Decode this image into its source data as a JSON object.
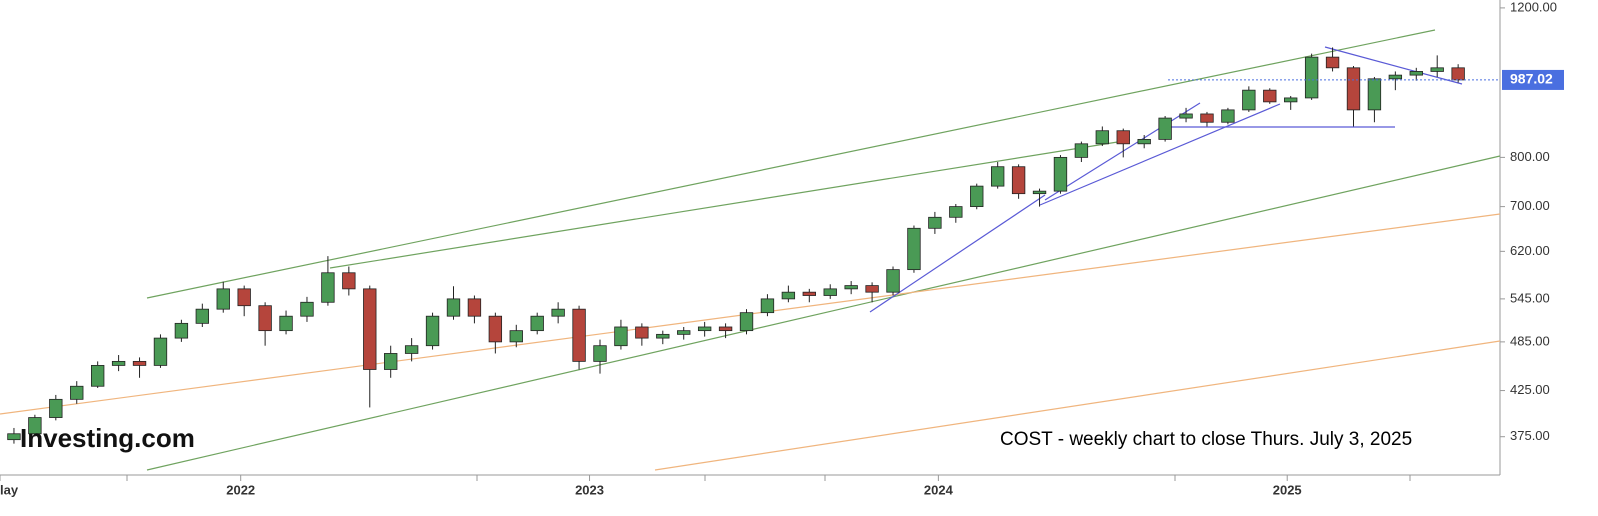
{
  "chart_data": {
    "type": "candlestick",
    "annotation": "COST - weekly chart to close Thurs. July 3, 2025",
    "watermark": "Investing.com",
    "log_scale": true,
    "up_color": "#4a9a55",
    "down_color": "#b5453c",
    "price_line_color": "#4a6fe0",
    "xlim": [
      2021.31,
      2025.61
    ],
    "xticks": [
      {
        "value": 2021.31,
        "label": "lay"
      },
      {
        "value": 2022,
        "label": "2022"
      },
      {
        "value": 2023,
        "label": "2023"
      },
      {
        "value": 2024,
        "label": "2024"
      },
      {
        "value": 2025,
        "label": "2025"
      }
    ],
    "ylim": [
      338,
      1226
    ],
    "yticks": [
      {
        "value": 375,
        "label": "375.00"
      },
      {
        "value": 425,
        "label": "425.00"
      },
      {
        "value": 485,
        "label": "485.00"
      },
      {
        "value": 545,
        "label": "545.00"
      },
      {
        "value": 620,
        "label": "620.00"
      },
      {
        "value": 700,
        "label": "700.00"
      },
      {
        "value": 800,
        "label": "800.00"
      },
      {
        "value": 1200,
        "label": "1200.00"
      }
    ],
    "x": [
      2021.35,
      2021.41,
      2021.47,
      2021.53,
      2021.59,
      2021.65,
      2021.71,
      2021.77,
      2021.83,
      2021.89,
      2021.95,
      2022.01,
      2022.07,
      2022.13,
      2022.19,
      2022.25,
      2022.31,
      2022.37,
      2022.43,
      2022.49,
      2022.55,
      2022.61,
      2022.67,
      2022.73,
      2022.79,
      2022.85,
      2022.91,
      2022.97,
      2023.03,
      2023.09,
      2023.15,
      2023.21,
      2023.27,
      2023.33,
      2023.39,
      2023.45,
      2023.51,
      2023.57,
      2023.63,
      2023.69,
      2023.75,
      2023.81,
      2023.87,
      2023.93,
      2023.99,
      2024.05,
      2024.11,
      2024.17,
      2024.23,
      2024.29,
      2024.35,
      2024.41,
      2024.47,
      2024.53,
      2024.59,
      2024.65,
      2024.71,
      2024.77,
      2024.83,
      2024.89,
      2024.95,
      2025.01,
      2025.07,
      2025.13,
      2025.19,
      2025.25,
      2025.31,
      2025.37,
      2025.43,
      2025.49
    ],
    "open": [
      372,
      378,
      395,
      415,
      430,
      455,
      460,
      455,
      490,
      510,
      530,
      560,
      535,
      500,
      520,
      540,
      585,
      560,
      450,
      470,
      480,
      520,
      545,
      520,
      485,
      500,
      520,
      530,
      460,
      480,
      505,
      490,
      495,
      500,
      505,
      500,
      525,
      545,
      555,
      550,
      560,
      565,
      555,
      590,
      660,
      680,
      700,
      740,
      780,
      725,
      730,
      800,
      830,
      860,
      830,
      840,
      890,
      900,
      880,
      910,
      960,
      930,
      940,
      1050,
      1020,
      910,
      990,
      1000,
      1010,
      1020
    ],
    "high": [
      384,
      398,
      420,
      436,
      460,
      468,
      465,
      495,
      515,
      538,
      571,
      565,
      540,
      528,
      548,
      612,
      595,
      565,
      480,
      490,
      525,
      564,
      550,
      525,
      508,
      525,
      540,
      535,
      488,
      515,
      510,
      500,
      505,
      512,
      510,
      530,
      552,
      565,
      560,
      567,
      572,
      570,
      595,
      665,
      690,
      705,
      745,
      790,
      785,
      735,
      805,
      835,
      870,
      865,
      850,
      895,
      915,
      905,
      915,
      970,
      965,
      945,
      1060,
      1078,
      1025,
      995,
      1010,
      1020,
      1055,
      1030
    ],
    "low": [
      368,
      375,
      392,
      410,
      428,
      448,
      440,
      452,
      485,
      505,
      525,
      520,
      480,
      495,
      512,
      535,
      550,
      406,
      440,
      460,
      475,
      515,
      510,
      470,
      478,
      495,
      510,
      450,
      445,
      475,
      480,
      482,
      488,
      492,
      490,
      495,
      520,
      540,
      540,
      545,
      552,
      540,
      550,
      585,
      650,
      670,
      695,
      735,
      715,
      700,
      725,
      790,
      825,
      800,
      820,
      835,
      880,
      870,
      875,
      905,
      925,
      910,
      935,
      1010,
      870,
      880,
      960,
      985,
      995,
      980
    ],
    "close": [
      378,
      395,
      415,
      430,
      455,
      460,
      455,
      490,
      510,
      530,
      560,
      535,
      500,
      520,
      540,
      585,
      560,
      450,
      470,
      480,
      520,
      545,
      520,
      485,
      500,
      520,
      530,
      460,
      480,
      505,
      490,
      495,
      500,
      505,
      500,
      525,
      545,
      555,
      550,
      560,
      565,
      555,
      590,
      660,
      680,
      700,
      740,
      780,
      725,
      730,
      800,
      830,
      860,
      830,
      840,
      890,
      900,
      880,
      910,
      960,
      930,
      940,
      1050,
      1020,
      910,
      990,
      1000,
      1010,
      1020,
      987.02
    ]
  }
}
